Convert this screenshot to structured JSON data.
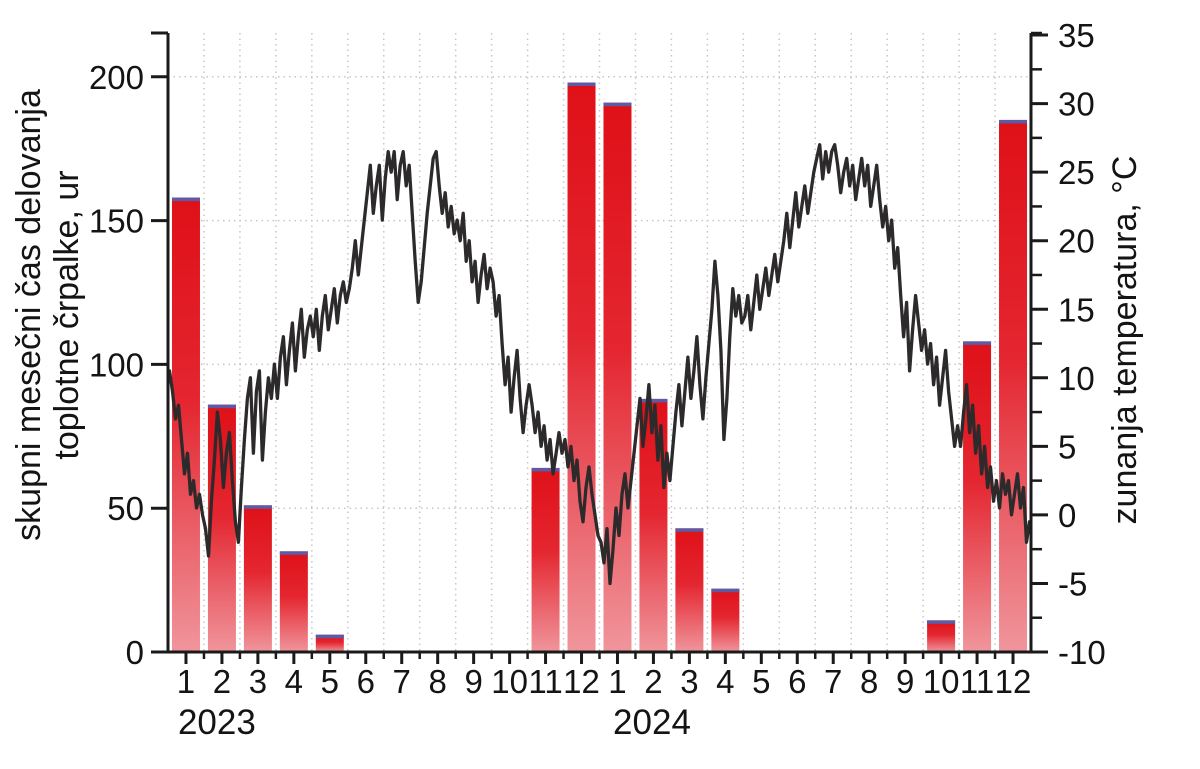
{
  "chart_data": {
    "type": "bar+line",
    "title": "",
    "grid": true,
    "legend": false,
    "x_axis": {
      "month_tick_labels": [
        "1",
        "2",
        "3",
        "4",
        "5",
        "6",
        "7",
        "8",
        "9",
        "10",
        "11",
        "12",
        "1",
        "2",
        "3",
        "4",
        "5",
        "6",
        "7",
        "8",
        "9",
        "10",
        "11",
        "12"
      ],
      "year_labels": [
        {
          "text": "2023",
          "month_coord": 1.36
        },
        {
          "text": "2024",
          "month_coord": 13.46
        }
      ]
    },
    "left_axis": {
      "title_line1": "skupni mesečni čas delovanja",
      "title_line2": "toplotne črpalke, ur",
      "tick_values": [
        0,
        50,
        100,
        150,
        200
      ],
      "range": [
        0,
        215
      ]
    },
    "right_axis": {
      "title": "zunanja temperatura, °C",
      "tick_values": [
        -10,
        -5,
        0,
        5,
        10,
        15,
        20,
        25,
        30,
        35
      ],
      "minor_tick_step": 2.5,
      "range": [
        -10,
        35.2
      ]
    },
    "bar_series": {
      "name": "skupni mesečni čas delovanja toplotne črpalke",
      "unit": "ur",
      "axis": "left",
      "categories": [
        "2023-01",
        "2023-02",
        "2023-03",
        "2023-04",
        "2023-05",
        "2023-06",
        "2023-07",
        "2023-08",
        "2023-09",
        "2023-10",
        "2023-11",
        "2023-12",
        "2024-01",
        "2024-02",
        "2024-03",
        "2024-04",
        "2024-05",
        "2024-06",
        "2024-07",
        "2024-08",
        "2024-09",
        "2024-10",
        "2024-11",
        "2024-12"
      ],
      "values": [
        158,
        86,
        51,
        35,
        6,
        0,
        0,
        0,
        0,
        0,
        64,
        198,
        191,
        88,
        43,
        22,
        0,
        0,
        0,
        0,
        0,
        11,
        108,
        185
      ]
    },
    "line_series": {
      "name": "zunanja temperatura",
      "unit": "°C",
      "axis": "right",
      "points_per_month": 12,
      "values": [
        10.5,
        9.0,
        7.0,
        8.0,
        5.5,
        3.0,
        4.5,
        1.5,
        2.5,
        0.5,
        1.5,
        0.0,
        -1.0,
        -3.0,
        1.0,
        4.0,
        7.5,
        5.5,
        2.0,
        4.5,
        6.0,
        2.5,
        -0.5,
        -2.0,
        2.0,
        5.5,
        8.5,
        10.0,
        4.5,
        9.0,
        10.5,
        4.0,
        7.5,
        10.0,
        8.5,
        11.0,
        8.5,
        11.5,
        13.0,
        9.5,
        12.0,
        14.0,
        10.5,
        13.0,
        15.0,
        11.5,
        13.5,
        14.5,
        13.0,
        15.0,
        12.0,
        14.5,
        16.0,
        13.5,
        15.0,
        16.5,
        14.0,
        16.0,
        17.0,
        15.5,
        16.5,
        18.0,
        20.0,
        17.5,
        19.5,
        21.5,
        23.5,
        25.5,
        22.0,
        24.0,
        25.5,
        21.5,
        24.5,
        26.5,
        25.0,
        26.5,
        23.0,
        25.5,
        26.5,
        24.0,
        25.5,
        22.0,
        18.5,
        15.5,
        17.0,
        19.5,
        22.0,
        24.0,
        26.0,
        26.5,
        24.0,
        22.0,
        23.5,
        21.0,
        22.5,
        20.5,
        21.5,
        20.0,
        22.0,
        18.5,
        20.0,
        17.0,
        18.5,
        15.5,
        17.5,
        19.0,
        16.5,
        18.0,
        17.0,
        14.5,
        16.0,
        12.5,
        9.5,
        11.5,
        7.5,
        10.0,
        12.0,
        8.5,
        6.0,
        8.0,
        9.5,
        8.0,
        6.0,
        7.5,
        5.0,
        6.5,
        4.0,
        5.5,
        3.0,
        4.5,
        6.0,
        4.5,
        5.5,
        3.5,
        5.0,
        2.5,
        4.0,
        1.0,
        -0.5,
        2.0,
        3.5,
        1.5,
        0.0,
        -1.5,
        -2.0,
        -3.5,
        -1.0,
        -5.0,
        -2.5,
        0.5,
        -1.5,
        1.5,
        3.0,
        0.5,
        2.5,
        4.5,
        6.5,
        8.5,
        5.0,
        7.0,
        9.5,
        6.0,
        8.0,
        4.0,
        6.5,
        2.0,
        4.5,
        2.5,
        5.0,
        7.5,
        9.5,
        6.5,
        9.0,
        11.5,
        8.5,
        10.5,
        13.0,
        9.5,
        7.0,
        10.0,
        12.5,
        15.0,
        18.5,
        16.0,
        12.0,
        5.5,
        8.5,
        13.0,
        16.5,
        14.5,
        16.0,
        14.0,
        14.5,
        16.0,
        13.5,
        15.5,
        17.5,
        15.0,
        16.5,
        18.0,
        16.0,
        17.5,
        19.0,
        17.0,
        18.5,
        20.0,
        22.0,
        19.5,
        21.5,
        23.5,
        21.0,
        22.5,
        24.0,
        22.0,
        23.5,
        25.0,
        26.0,
        27.0,
        24.5,
        26.5,
        25.0,
        26.5,
        27.0,
        25.5,
        23.5,
        25.0,
        26.0,
        24.0,
        25.5,
        23.0,
        24.5,
        26.0,
        24.0,
        25.5,
        22.5,
        24.0,
        25.5,
        23.0,
        21.0,
        22.5,
        20.0,
        21.5,
        18.0,
        19.5,
        16.0,
        13.0,
        15.5,
        10.5,
        13.5,
        16.0,
        14.0,
        12.0,
        13.5,
        11.0,
        12.5,
        9.5,
        11.5,
        8.0,
        10.0,
        12.0,
        9.0,
        7.0,
        5.0,
        6.5,
        5.0,
        7.5,
        9.5,
        6.0,
        8.0,
        4.5,
        6.5,
        3.0,
        5.0,
        2.0,
        3.5,
        1.0,
        2.5,
        0.5,
        3.0,
        1.5,
        2.5,
        0.0,
        1.5,
        3.0,
        0.5,
        2.0,
        -2.0,
        -0.5
      ]
    },
    "colors": {
      "bar_gradient_top": "#df1018",
      "bar_gradient_mid": "#e42630",
      "bar_gradient_bottom": "#f0959c",
      "bar_cap": "#5b5ba6",
      "line": "#2d2a2b",
      "grid": "#c7c7c7",
      "axis": "#1a1a1a",
      "text": "#141414"
    }
  }
}
